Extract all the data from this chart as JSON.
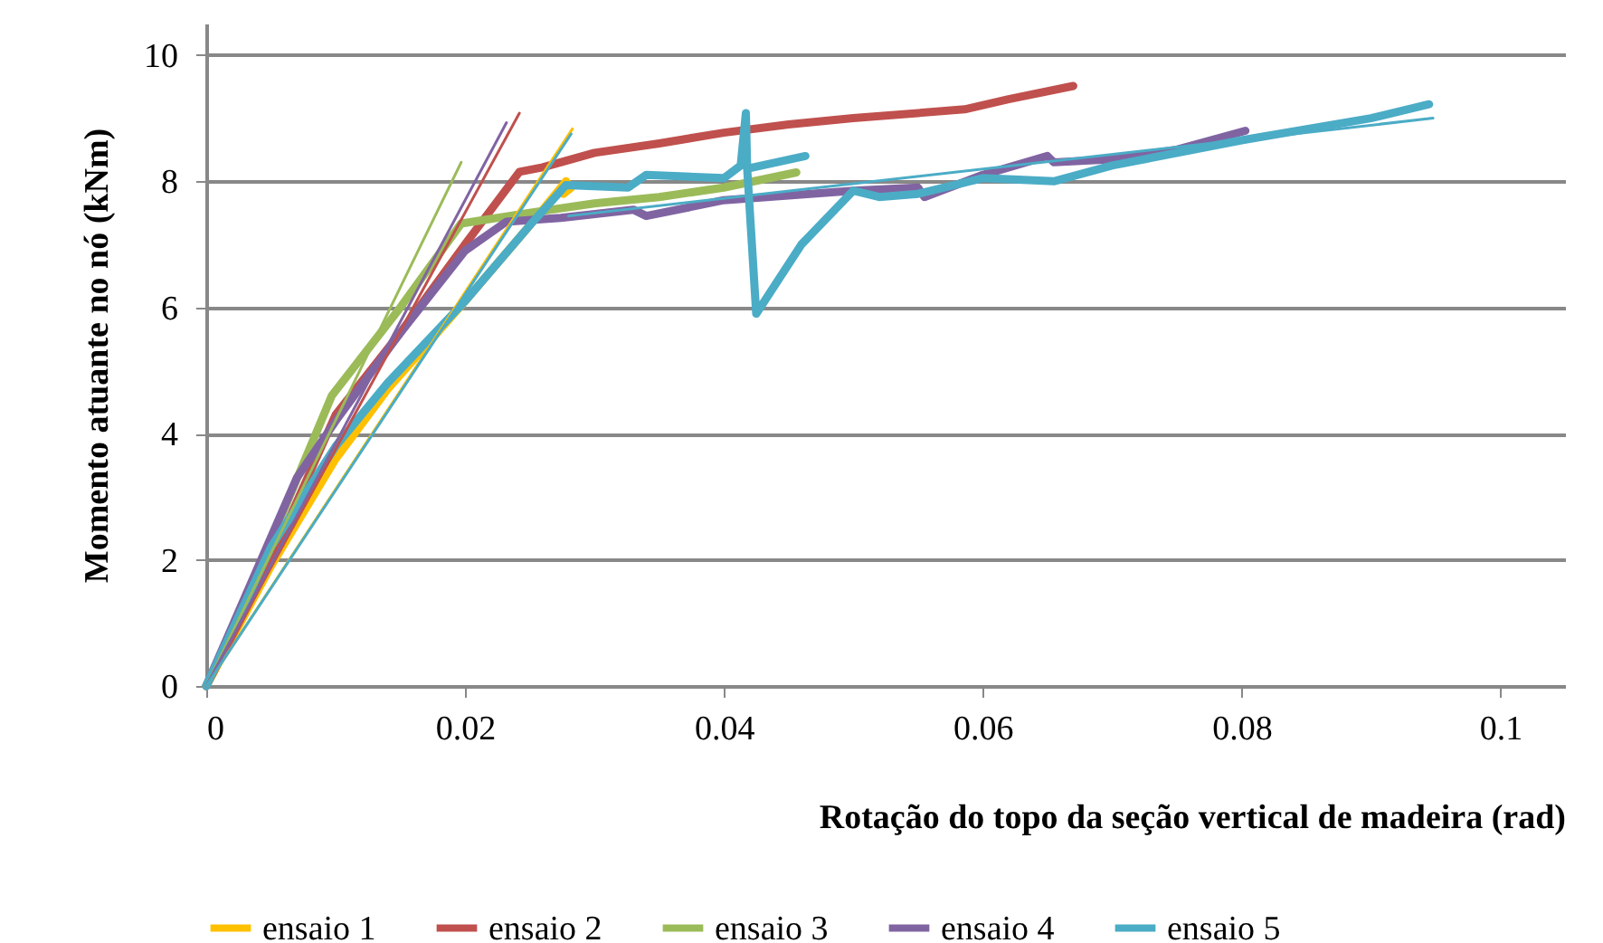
{
  "chart_data": {
    "type": "line",
    "xlabel": "Rotação do topo da seção vertical de madeira (rad)",
    "ylabel": "Momento atuante no nó (kNm)",
    "xlim": [
      0,
      0.105
    ],
    "xticks": [
      0,
      0.02,
      0.04,
      0.06,
      0.08,
      0.1
    ],
    "ylim": [
      0,
      10.5
    ],
    "yticks": [
      0,
      2,
      4,
      6,
      8,
      10
    ],
    "grid": "y",
    "legend": "bottom",
    "line_style": "solid",
    "marker": "none",
    "series": [
      {
        "name": "ensaio 1",
        "color": "#ffc000",
        "x": [
          0,
          0.005,
          0.01,
          0.014,
          0.02,
          0.025,
          0.0278,
          0.0282,
          0.0276
        ],
        "values": [
          0,
          1.9,
          3.6,
          4.7,
          6.1,
          7.3,
          8.0,
          7.9,
          7.8
        ]
      },
      {
        "name": "ensaio 2",
        "color": "#c0504d",
        "x": [
          0,
          0.005,
          0.01,
          0.015,
          0.02,
          0.0242,
          0.026,
          0.03,
          0.035,
          0.04,
          0.045,
          0.05,
          0.0586,
          0.062,
          0.067
        ],
        "values": [
          0,
          2.0,
          4.3,
          5.6,
          7.0,
          8.15,
          8.22,
          8.45,
          8.6,
          8.77,
          8.9,
          9.0,
          9.14,
          9.3,
          9.51
        ]
      },
      {
        "name": "ensaio 3",
        "color": "#9bbb59",
        "x": [
          0,
          0.005,
          0.0097,
          0.015,
          0.0197,
          0.025,
          0.03,
          0.035,
          0.04,
          0.0456
        ],
        "values": [
          0,
          2.3,
          4.6,
          6.0,
          7.33,
          7.5,
          7.65,
          7.75,
          7.9,
          8.14
        ]
      },
      {
        "name": "ensaio 4",
        "color": "#8064a2",
        "x": [
          0,
          0.007,
          0.01,
          0.015,
          0.02,
          0.0232,
          0.0274,
          0.033,
          0.034,
          0.04,
          0.05,
          0.055,
          0.0555,
          0.06,
          0.065,
          0.0655,
          0.07,
          0.075,
          0.0803
        ],
        "values": [
          0,
          3.3,
          4.2,
          5.6,
          6.9,
          7.36,
          7.42,
          7.55,
          7.45,
          7.7,
          7.85,
          7.9,
          7.75,
          8.1,
          8.4,
          8.3,
          8.35,
          8.5,
          8.8
        ]
      },
      {
        "name": "ensaio 5",
        "color": "#4bacc6",
        "x": [
          0,
          0.005,
          0.01,
          0.014,
          0.02,
          0.025,
          0.0278,
          0.0326,
          0.034,
          0.04,
          0.0413,
          0.0417,
          0.0418,
          0.0463,
          0.0418,
          0.0425,
          0.046,
          0.05,
          0.052,
          0.055,
          0.06,
          0.0655,
          0.07,
          0.08,
          0.09,
          0.0945
        ],
        "values": [
          0,
          2.2,
          3.8,
          4.8,
          6.1,
          7.3,
          7.94,
          7.9,
          8.1,
          8.05,
          8.25,
          9.08,
          8.2,
          8.4,
          8.2,
          5.9,
          7.0,
          7.85,
          7.75,
          7.8,
          8.05,
          8.0,
          8.25,
          8.65,
          9.0,
          9.22
        ]
      },
      {
        "color": "#ffc000",
        "x": [
          0,
          0.0283
        ],
        "values": [
          0,
          8.83
        ]
      },
      {
        "color": "#c0504d",
        "x": [
          0,
          0.0242
        ],
        "values": [
          0,
          9.08
        ]
      },
      {
        "color": "#9bbb59",
        "x": [
          0,
          0.0197
        ],
        "values": [
          0,
          8.3
        ]
      },
      {
        "color": "#8064a2",
        "x": [
          0,
          0.0232
        ],
        "values": [
          0,
          8.93
        ]
      },
      {
        "color": "#4bacc6",
        "x": [
          0,
          0.0282
        ],
        "values": [
          0,
          8.75
        ]
      },
      {
        "color": "#4bacc6",
        "x": [
          0.028,
          0.0948
        ],
        "values": [
          7.45,
          9.0
        ]
      }
    ]
  }
}
